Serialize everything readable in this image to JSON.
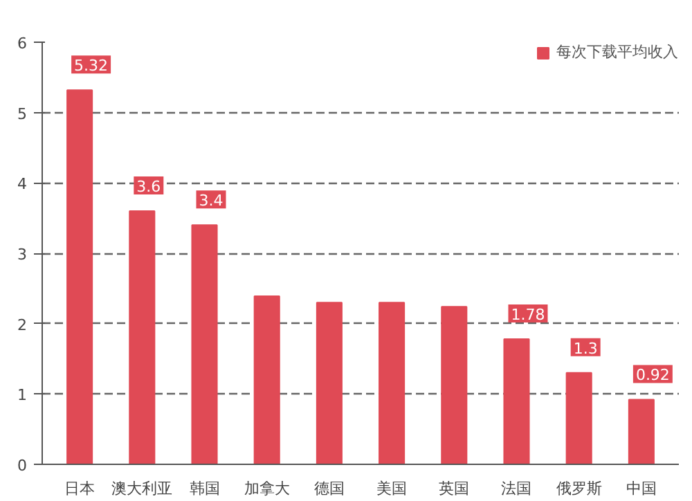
{
  "chart_data": {
    "type": "bar",
    "categories": [
      "日本",
      "澳大利亚",
      "韩国",
      "加拿大",
      "德国",
      "美国",
      "英国",
      "法国",
      "俄罗斯",
      "中国"
    ],
    "series": [
      {
        "name": "每次下载平均收入",
        "color": "#e04a55",
        "values": [
          5.32,
          3.6,
          3.4,
          2.39,
          2.3,
          2.3,
          2.24,
          1.78,
          1.3,
          0.92
        ],
        "value_labels": [
          "5.32",
          "3.6",
          "3.4",
          null,
          null,
          null,
          null,
          "1.78",
          "1.3",
          "0.92"
        ]
      }
    ],
    "ylim": [
      0,
      6
    ],
    "yticks": [
      0,
      1,
      2,
      3,
      4,
      5,
      6
    ],
    "grid": "y",
    "legend": "top right"
  }
}
